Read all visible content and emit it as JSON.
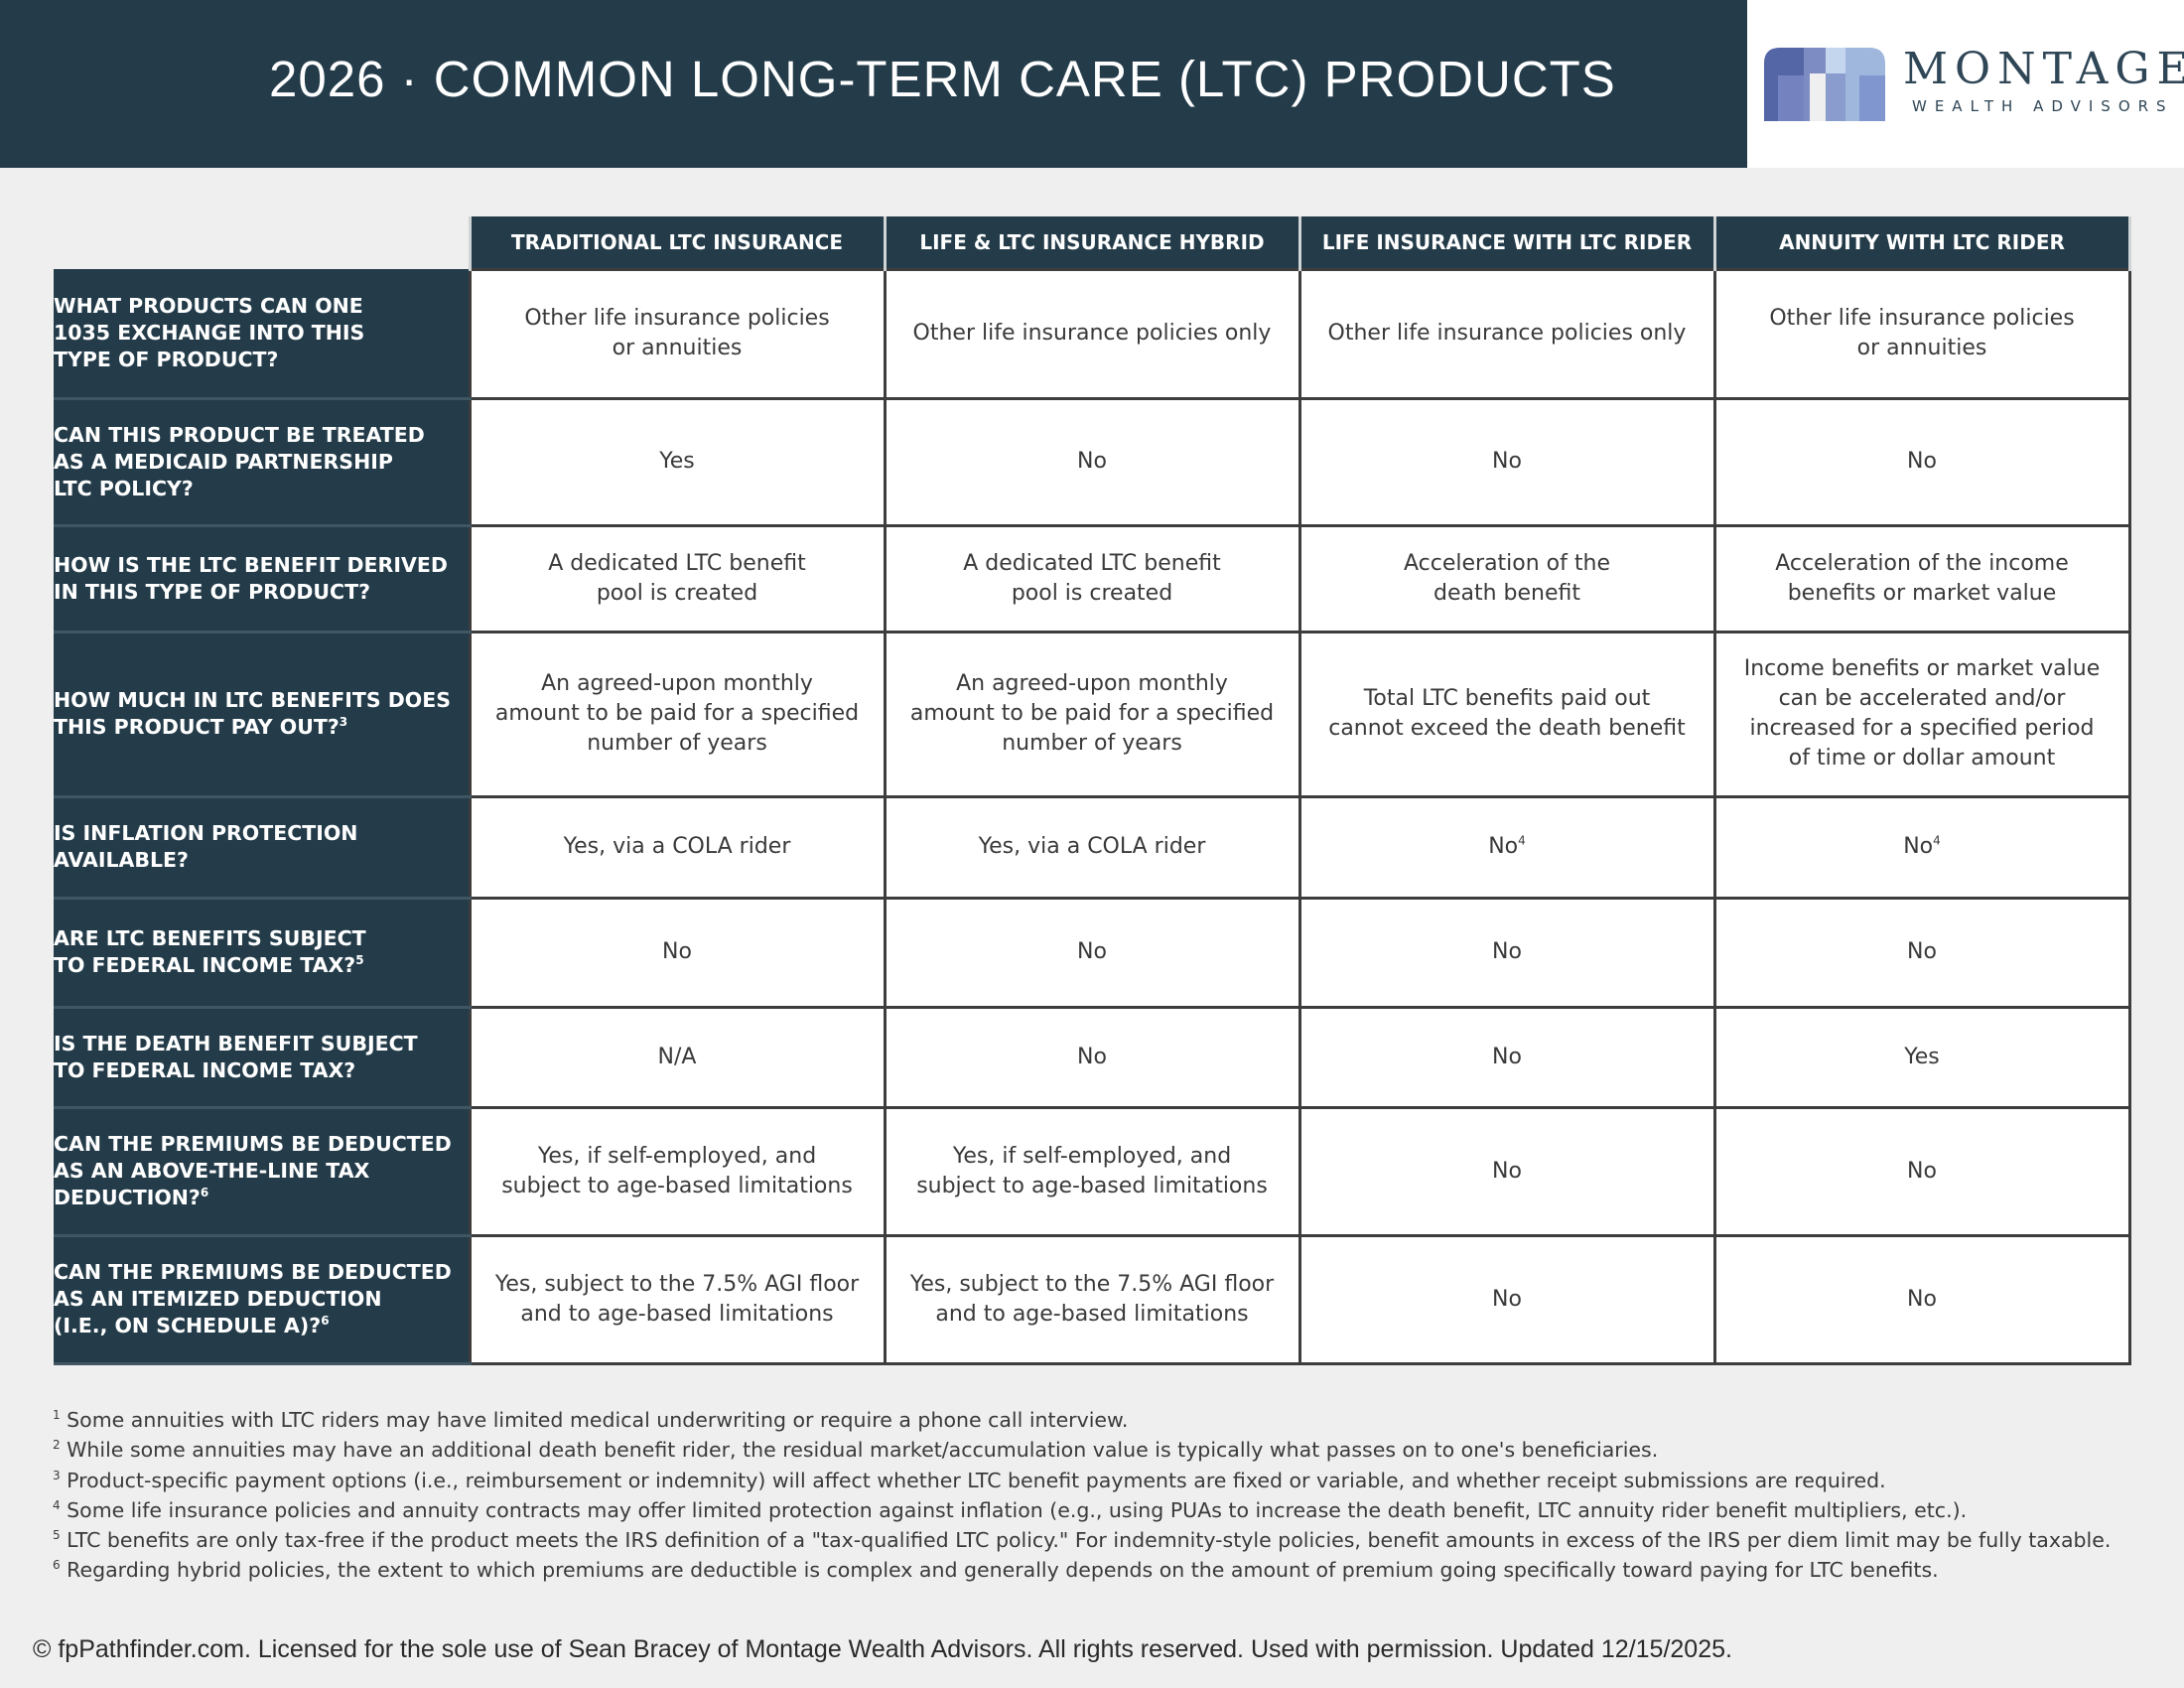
{
  "header": {
    "title": "2026 · COMMON LONG-TERM CARE (LTC) PRODUCTS"
  },
  "logo": {
    "name": "MONTAGE",
    "subtitle": "WEALTH ADVISORS",
    "colors": [
      "#5566a6",
      "#7d8cc2",
      "#9fb6dd",
      "#c4d6ee"
    ]
  },
  "table": {
    "columns": [
      "TRADITIONAL LTC INSURANCE",
      "LIFE & LTC INSURANCE HYBRID",
      "LIFE INSURANCE WITH LTC RIDER",
      "ANNUITY WITH LTC RIDER"
    ],
    "rows": [
      {
        "question": "WHAT PRODUCTS CAN ONE\n1035 EXCHANGE INTO THIS\nTYPE OF PRODUCT?",
        "q_sup": "",
        "cells": [
          {
            "text": "Other life insurance policies\nor annuities",
            "sup": ""
          },
          {
            "text": "Other life insurance policies only",
            "sup": ""
          },
          {
            "text": "Other life insurance policies only",
            "sup": ""
          },
          {
            "text": "Other life insurance policies\nor annuities",
            "sup": ""
          }
        ]
      },
      {
        "question": "CAN THIS PRODUCT BE TREATED\nAS A MEDICAID PARTNERSHIP\nLTC POLICY?",
        "q_sup": "",
        "cells": [
          {
            "text": "Yes",
            "sup": ""
          },
          {
            "text": "No",
            "sup": ""
          },
          {
            "text": "No",
            "sup": ""
          },
          {
            "text": "No",
            "sup": ""
          }
        ]
      },
      {
        "question": "HOW IS THE LTC BENEFIT DERIVED\nIN THIS TYPE OF PRODUCT?",
        "q_sup": "",
        "cells": [
          {
            "text": "A dedicated LTC benefit\npool is created",
            "sup": ""
          },
          {
            "text": "A dedicated LTC benefit\npool is created",
            "sup": ""
          },
          {
            "text": "Acceleration of the\ndeath benefit",
            "sup": ""
          },
          {
            "text": "Acceleration of the income\nbenefits or market value",
            "sup": ""
          }
        ]
      },
      {
        "question": "HOW MUCH IN LTC BENEFITS DOES\nTHIS PRODUCT PAY OUT?",
        "q_sup": "3",
        "cells": [
          {
            "text": "An agreed-upon monthly\namount to be paid for a specified\nnumber of years",
            "sup": ""
          },
          {
            "text": "An agreed-upon monthly\namount to be paid for a specified\nnumber of years",
            "sup": ""
          },
          {
            "text": "Total LTC benefits paid out\ncannot exceed the death benefit",
            "sup": ""
          },
          {
            "text": "Income benefits or market value\ncan be accelerated and/or\nincreased for a specified period\nof time or dollar amount",
            "sup": ""
          }
        ]
      },
      {
        "question": "IS INFLATION PROTECTION\nAVAILABLE?",
        "q_sup": "",
        "cells": [
          {
            "text": "Yes, via a COLA rider",
            "sup": ""
          },
          {
            "text": "Yes, via a COLA rider",
            "sup": ""
          },
          {
            "text": "No",
            "sup": "4"
          },
          {
            "text": "No",
            "sup": "4"
          }
        ]
      },
      {
        "question": "ARE LTC BENEFITS SUBJECT\nTO FEDERAL INCOME TAX?",
        "q_sup": "5",
        "cells": [
          {
            "text": "No",
            "sup": ""
          },
          {
            "text": "No",
            "sup": ""
          },
          {
            "text": "No",
            "sup": ""
          },
          {
            "text": "No",
            "sup": ""
          }
        ]
      },
      {
        "question": "IS THE DEATH BENEFIT SUBJECT\nTO FEDERAL INCOME TAX?",
        "q_sup": "",
        "cells": [
          {
            "text": "N/A",
            "sup": ""
          },
          {
            "text": "No",
            "sup": ""
          },
          {
            "text": "No",
            "sup": ""
          },
          {
            "text": "Yes",
            "sup": ""
          }
        ]
      },
      {
        "question": "CAN THE PREMIUMS BE DEDUCTED\nAS AN ABOVE-THE-LINE TAX\nDEDUCTION?",
        "q_sup": "6",
        "cells": [
          {
            "text": "Yes, if self-employed, and\nsubject to age-based limitations",
            "sup": ""
          },
          {
            "text": "Yes, if self-employed, and\nsubject to age-based limitations",
            "sup": ""
          },
          {
            "text": "No",
            "sup": ""
          },
          {
            "text": "No",
            "sup": ""
          }
        ]
      },
      {
        "question": "CAN THE PREMIUMS BE DEDUCTED\nAS AN ITEMIZED DEDUCTION\n(I.E., ON SCHEDULE A)?",
        "q_sup": "6",
        "cells": [
          {
            "text": "Yes, subject to the 7.5% AGI floor\nand to age-based limitations",
            "sup": ""
          },
          {
            "text": "Yes, subject to the 7.5% AGI floor\nand to age-based limitations",
            "sup": ""
          },
          {
            "text": "No",
            "sup": ""
          },
          {
            "text": "No",
            "sup": ""
          }
        ]
      }
    ]
  },
  "footnotes": [
    {
      "num": "1",
      "text": " Some annuities with LTC riders may have limited medical underwriting or require a phone call interview."
    },
    {
      "num": "2",
      "text": " While some annuities may have an additional death benefit rider, the residual market/accumulation value is typically what passes on to one's beneficiaries."
    },
    {
      "num": "3",
      "text": " Product-specific payment options (i.e., reimbursement or indemnity) will affect whether LTC benefit payments are fixed or variable, and whether receipt submissions are required."
    },
    {
      "num": "4",
      "text": " Some life insurance policies and annuity contracts may offer limited protection against inflation (e.g., using PUAs to increase the death benefit, LTC annuity rider benefit multipliers, etc.)."
    },
    {
      "num": "5",
      "text": " LTC benefits are only tax-free if the product meets the IRS definition of a \"tax-qualified LTC policy.\" For indemnity-style policies, benefit amounts in excess of the IRS per diem limit may be fully taxable."
    },
    {
      "num": "6",
      "text": " Regarding hybrid policies, the extent to which premiums are deductible is complex and generally depends on the amount of premium going specifically toward paying for LTC benefits."
    }
  ],
  "copyright": "© fpPathfinder.com. Licensed for the sole use of Sean Bracey of Montage Wealth Advisors. All rights reserved. Used with permission. Updated 12/15/2025."
}
